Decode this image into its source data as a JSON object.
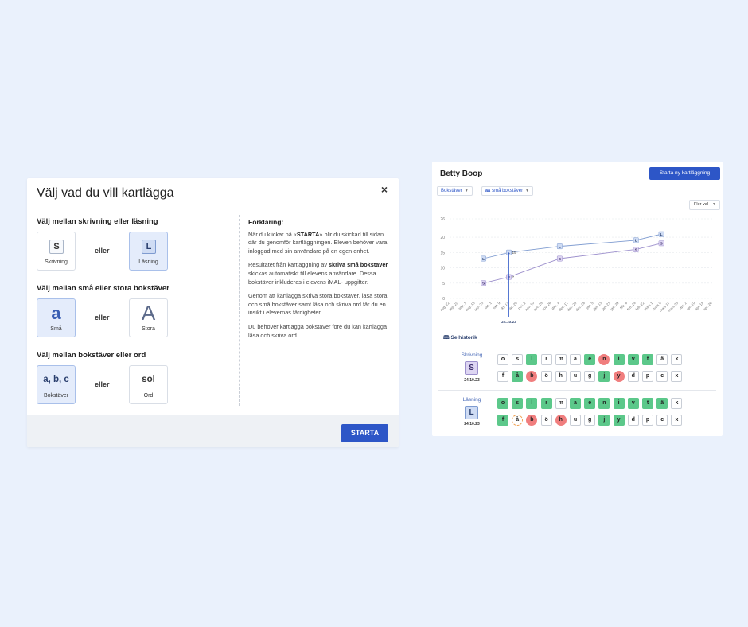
{
  "dialog": {
    "title": "Välj vad du vill kartlägga",
    "close_label": "×",
    "section1": {
      "label": "Välj mellan skrivning eller läsning",
      "opt_a": {
        "symbol": "S",
        "caption": "Skrivning",
        "selected": false
      },
      "or_text": "eller",
      "opt_b": {
        "symbol": "L",
        "caption": "Läsning",
        "selected": true
      }
    },
    "section2": {
      "label": "Välj mellan små eller stora bokstäver",
      "opt_a": {
        "symbol": "a",
        "caption": "Små",
        "selected": true
      },
      "or_text": "eller",
      "opt_b": {
        "symbol": "A",
        "caption": "Stora",
        "selected": false
      }
    },
    "section3": {
      "label": "Välj mellan bokstäver eller ord",
      "opt_a": {
        "symbol": "a, b, c",
        "caption": "Bokstäver",
        "selected": true
      },
      "or_text": "eller",
      "opt_b": {
        "symbol": "sol",
        "caption": "Ord",
        "selected": false
      }
    },
    "explanation": {
      "heading": "Förklaring:",
      "p1_a": "När du klickar på «",
      "p1_b": "STARTA",
      "p1_c": "» blir du skickad till sidan där du genomför kartläggningen. Eleven behöver vara inloggad med sin användare på en egen enhet.",
      "p2_a": "Resultatet från kartläggning av ",
      "p2_b": "skriva små bokstäver",
      "p2_c": " skickas automatiskt till elevens användare. Dessa bokstäver inkluderas i elevens iMAL- uppgifter.",
      "p3": "Genom att kartlägga skriva stora bokstäver, läsa stora och små bokstäver samt läsa och skriva ord får du en insikt i elevernas färdigheter.",
      "p4": "Du behöver kartlägga bokstäver före du kan kartlägga läsa och skriva ord."
    },
    "start_label": "STARTA"
  },
  "panel": {
    "student_name": "Betty Boop",
    "new_button": "Starta ny kartläggning",
    "filter1": "Bokstäver",
    "filter2_prefix": "aa",
    "filter2": "små bokstäver",
    "more": "Fler val",
    "history_label": "Se historik",
    "colors": {
      "accent": "#2d56c7",
      "correct": "#5cc88a",
      "wrong": "#f07e7e",
      "partial": "#f0a050",
      "writing": "#9c8fcc",
      "reading": "#7e9bd0"
    },
    "writing": {
      "label": "Skrivning",
      "symbol": "S",
      "date": "24.10.23",
      "rows": [
        [
          [
            "o",
            ""
          ],
          [
            "s",
            ""
          ],
          [
            "l",
            "g"
          ],
          [
            "r",
            ""
          ],
          [
            "m",
            ""
          ],
          [
            "a",
            ""
          ],
          [
            "e",
            "g"
          ],
          [
            "n",
            "r"
          ],
          [
            "i",
            "g"
          ],
          [
            "v",
            "g"
          ],
          [
            "t",
            "g"
          ],
          [
            "ä",
            ""
          ],
          [
            "k",
            ""
          ]
        ],
        [
          [
            "f",
            ""
          ],
          [
            "å",
            "g"
          ],
          [
            "b",
            "r"
          ],
          [
            "ö",
            ""
          ],
          [
            "h",
            ""
          ],
          [
            "u",
            ""
          ],
          [
            "g",
            ""
          ],
          [
            "j",
            "g"
          ],
          [
            "y",
            "r"
          ],
          [
            "d",
            ""
          ],
          [
            "p",
            ""
          ],
          [
            "c",
            ""
          ],
          [
            "x",
            ""
          ]
        ]
      ]
    },
    "reading": {
      "label": "Läsning",
      "symbol": "L",
      "date": "24.10.23",
      "rows": [
        [
          [
            "o",
            "g"
          ],
          [
            "s",
            "g"
          ],
          [
            "l",
            "g"
          ],
          [
            "r",
            "g"
          ],
          [
            "m",
            ""
          ],
          [
            "a",
            "g"
          ],
          [
            "e",
            "g"
          ],
          [
            "n",
            "g"
          ],
          [
            "i",
            "g"
          ],
          [
            "v",
            "g"
          ],
          [
            "t",
            "g"
          ],
          [
            "ä",
            "g"
          ],
          [
            "k",
            ""
          ]
        ],
        [
          [
            "f",
            "g"
          ],
          [
            "å",
            "o"
          ],
          [
            "b",
            "r"
          ],
          [
            "ö",
            ""
          ],
          [
            "h",
            "r"
          ],
          [
            "u",
            ""
          ],
          [
            "g",
            ""
          ],
          [
            "j",
            "g"
          ],
          [
            "y",
            "g"
          ],
          [
            "d",
            ""
          ],
          [
            "p",
            ""
          ],
          [
            "c",
            ""
          ],
          [
            "x",
            ""
          ]
        ]
      ]
    }
  },
  "chart_data": {
    "type": "line",
    "ylim": [
      0,
      26
    ],
    "yticks": [
      0,
      5,
      10,
      15,
      20,
      26
    ],
    "categories": [
      "aug. 22",
      "sep. 22",
      "sep. 1",
      "aug. 15",
      "sep. 23",
      "okt. 1",
      "okt. 9",
      "okt. 17",
      "okt. 25",
      "nov. 2",
      "nov. 10",
      "nov. 18",
      "nov. 26",
      "dec. 4",
      "dec. 12",
      "dec. 20",
      "dec. 28",
      "jan. 5",
      "jan. 13",
      "jan. 21",
      "jan. 29",
      "feb. 6",
      "feb. 14",
      "feb. 22",
      "mars 1",
      "mars 9",
      "mars 17",
      "mars 25",
      "apr. 2",
      "apr. 10",
      "apr. 18",
      "apr. 26"
    ],
    "series": [
      {
        "name": "L",
        "color": "#7e9bd0",
        "points": [
          [
            4,
            13
          ],
          [
            7,
            15
          ],
          [
            13,
            17
          ],
          [
            22,
            19
          ],
          [
            25,
            21
          ]
        ]
      },
      {
        "name": "S",
        "color": "#9c8fcc",
        "points": [
          [
            4,
            5
          ],
          [
            7,
            7
          ],
          [
            13,
            13
          ],
          [
            22,
            16
          ],
          [
            25,
            18
          ]
        ]
      }
    ],
    "annotations": [
      {
        "x": 7,
        "series": "L",
        "label": "15"
      },
      {
        "x": 7,
        "series": "S",
        "label": "7"
      }
    ],
    "marker": {
      "x": 7,
      "label": "24.10.23"
    }
  }
}
